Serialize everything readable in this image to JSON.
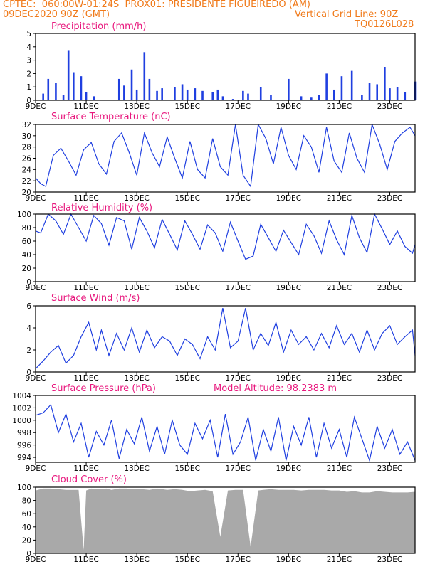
{
  "header": {
    "line1_left": "CPTEC:  060:00W-01:24S  PROX01: PRESIDENTE FIGUEIREDO (AM)",
    "line2_left": "09DEC2020 90Z (GMT)",
    "line2_right": "Vertical Grid Line: 90Z",
    "line3_right": "TQ0126L028"
  },
  "colors": {
    "header": "#f07a1a",
    "title": "#e8177d",
    "line": "#1f3fe0",
    "bar": "#1f3fe0",
    "cloud": "#a9a9a9"
  },
  "chart_data": [
    {
      "type": "bar",
      "title": "Precipitation (mm/h)",
      "x_tick_labels": [
        "9DEC",
        "11DEC",
        "13DEC",
        "15DEC",
        "17DEC",
        "19DEC",
        "21DEC",
        "23DEC"
      ],
      "yticks": [
        0,
        1,
        2,
        3,
        4,
        5
      ],
      "ylim": [
        0,
        5
      ],
      "x_days": [
        0,
        0.3,
        0.5,
        0.8,
        1.1,
        1.3,
        1.5,
        1.8,
        2.0,
        2.3,
        3.0,
        3.3,
        3.5,
        3.8,
        4.0,
        4.3,
        4.5,
        4.8,
        5.0,
        5.5,
        5.8,
        6.0,
        6.3,
        6.6,
        7.0,
        7.2,
        7.4,
        7.8,
        8.2,
        8.4,
        8.6,
        8.9,
        9.3,
        9.8,
        10.0,
        10.5,
        10.9,
        11.2,
        11.5,
        11.8,
        12.1,
        12.5,
        12.9,
        13.2,
        13.5,
        13.8,
        14.0,
        14.3,
        14.6,
        15.0
      ],
      "values": [
        0,
        0.5,
        1.6,
        1.3,
        0.4,
        3.7,
        2.1,
        1.8,
        0.6,
        0.3,
        0,
        1.6,
        1.1,
        2.3,
        0.8,
        3.6,
        1.6,
        0.7,
        0.9,
        1.0,
        1.2,
        0.8,
        0.9,
        0.7,
        0.6,
        0.8,
        0.3,
        0.1,
        0.7,
        0.5,
        0,
        1.0,
        0.4,
        0,
        1.6,
        0.3,
        0.2,
        0.4,
        2.0,
        0.8,
        1.8,
        2.2,
        0.4,
        1.3,
        1.2,
        2.5,
        0.9,
        1.0,
        0.6,
        1.4
      ]
    },
    {
      "type": "line",
      "title": "Surface Temperature (nC)",
      "x_tick_labels": [
        "9DEC",
        "11DEC",
        "13DEC",
        "15DEC",
        "17DEC",
        "19DEC",
        "21DEC",
        "23DEC"
      ],
      "yticks": [
        20,
        22,
        24,
        26,
        28,
        30,
        32
      ],
      "ylim": [
        20,
        32
      ],
      "x_days": [
        0,
        0.2,
        0.4,
        0.7,
        1.0,
        1.3,
        1.6,
        1.9,
        2.2,
        2.5,
        2.8,
        3.1,
        3.4,
        3.7,
        4.0,
        4.3,
        4.6,
        4.9,
        5.2,
        5.5,
        5.8,
        6.1,
        6.4,
        6.7,
        7.0,
        7.3,
        7.6,
        7.9,
        8.2,
        8.5,
        8.8,
        9.1,
        9.4,
        9.7,
        10.0,
        10.3,
        10.6,
        10.9,
        11.2,
        11.5,
        11.8,
        12.1,
        12.4,
        12.7,
        13.0,
        13.3,
        13.6,
        13.9,
        14.2,
        14.5,
        14.8,
        15.0
      ],
      "values": [
        22.5,
        21.5,
        21.0,
        26.5,
        27.8,
        25.5,
        23.0,
        27.5,
        28.8,
        25.0,
        23.2,
        29.0,
        30.5,
        27.0,
        23.0,
        30.5,
        27.0,
        24.5,
        29.8,
        26.0,
        22.5,
        29.0,
        24.0,
        22.5,
        29.5,
        24.5,
        23.0,
        32.5,
        23.0,
        21.0,
        32.0,
        29.5,
        25.0,
        31.5,
        26.5,
        24.0,
        30.0,
        28.0,
        23.5,
        31.5,
        25.5,
        23.5,
        30.5,
        26.0,
        23.5,
        32.0,
        28.5,
        24.0,
        29.0,
        30.5,
        31.5,
        30.0
      ]
    },
    {
      "type": "line",
      "title": "Relative Humidity (%)",
      "x_tick_labels": [
        "9DEC",
        "11DEC",
        "13DEC",
        "15DEC",
        "17DEC",
        "19DEC",
        "21DEC",
        "23DEC"
      ],
      "yticks": [
        0,
        20,
        40,
        60,
        80,
        100
      ],
      "ylim": [
        0,
        100
      ],
      "x_days": [
        0,
        0.2,
        0.5,
        0.8,
        1.1,
        1.4,
        1.7,
        2.0,
        2.3,
        2.6,
        2.9,
        3.2,
        3.5,
        3.8,
        4.1,
        4.4,
        4.7,
        5.0,
        5.3,
        5.6,
        5.9,
        6.2,
        6.5,
        6.8,
        7.1,
        7.4,
        7.7,
        8.0,
        8.3,
        8.6,
        8.9,
        9.2,
        9.5,
        9.8,
        10.1,
        10.4,
        10.7,
        11.0,
        11.3,
        11.6,
        11.9,
        12.2,
        12.5,
        12.8,
        13.1,
        13.4,
        13.7,
        14.0,
        14.3,
        14.6,
        14.9,
        15.0
      ],
      "values": [
        75,
        72,
        100,
        90,
        70,
        100,
        80,
        60,
        98,
        86,
        54,
        95,
        90,
        48,
        95,
        75,
        50,
        92,
        70,
        47,
        90,
        70,
        48,
        84,
        72,
        45,
        88,
        60,
        33,
        38,
        85,
        65,
        45,
        76,
        58,
        40,
        85,
        68,
        42,
        90,
        62,
        40,
        98,
        65,
        43,
        100,
        78,
        55,
        75,
        52,
        42,
        55
      ]
    },
    {
      "type": "line",
      "title": "Surface Wind (m/s)",
      "x_tick_labels": [
        "9DEC",
        "11DEC",
        "13DEC",
        "15DEC",
        "17DEC",
        "19DEC",
        "21DEC",
        "23DEC"
      ],
      "yticks": [
        0,
        2,
        4,
        6
      ],
      "ylim": [
        0,
        6
      ],
      "x_days": [
        0,
        0.3,
        0.6,
        0.9,
        1.2,
        1.5,
        1.8,
        2.1,
        2.4,
        2.6,
        2.9,
        3.2,
        3.5,
        3.8,
        4.1,
        4.4,
        4.7,
        5.0,
        5.3,
        5.6,
        5.9,
        6.2,
        6.5,
        6.8,
        7.1,
        7.4,
        7.7,
        8.0,
        8.3,
        8.6,
        8.9,
        9.2,
        9.5,
        9.8,
        10.1,
        10.4,
        10.7,
        11.0,
        11.3,
        11.6,
        11.9,
        12.2,
        12.5,
        12.8,
        13.1,
        13.4,
        13.7,
        14.0,
        14.3,
        14.6,
        14.9,
        15.0
      ],
      "values": [
        0.3,
        1.0,
        1.8,
        2.4,
        0.8,
        1.5,
        3.2,
        4.5,
        2.0,
        3.8,
        1.5,
        3.5,
        2.0,
        4.0,
        1.8,
        3.8,
        2.2,
        3.2,
        2.8,
        1.5,
        3.0,
        2.5,
        1.2,
        3.2,
        2.0,
        5.8,
        2.2,
        2.8,
        5.8,
        2.0,
        3.5,
        2.4,
        4.5,
        1.8,
        3.8,
        2.5,
        3.2,
        2.0,
        3.5,
        2.2,
        4.2,
        2.5,
        3.5,
        1.8,
        3.8,
        2.0,
        3.5,
        4.2,
        2.5,
        3.2,
        3.8,
        1.5
      ]
    },
    {
      "type": "line",
      "title": "Surface Pressure (hPa)",
      "annotation": "Model Altitude: 98.2383 m",
      "x_tick_labels": [
        "9DEC",
        "11DEC",
        "13DEC",
        "15DEC",
        "17DEC",
        "19DEC",
        "21DEC",
        "23DEC"
      ],
      "yticks": [
        994,
        996,
        998,
        1000,
        1002,
        1004
      ],
      "ylim": [
        993.2,
        1004
      ],
      "x_days": [
        0,
        0.3,
        0.6,
        0.9,
        1.2,
        1.5,
        1.8,
        2.1,
        2.4,
        2.7,
        3.0,
        3.3,
        3.6,
        3.9,
        4.2,
        4.5,
        4.8,
        5.1,
        5.4,
        5.7,
        6.0,
        6.3,
        6.6,
        6.9,
        7.2,
        7.5,
        7.8,
        8.1,
        8.4,
        8.7,
        9.0,
        9.3,
        9.6,
        9.9,
        10.2,
        10.5,
        10.8,
        11.1,
        11.4,
        11.7,
        12.0,
        12.3,
        12.6,
        12.9,
        13.2,
        13.5,
        13.8,
        14.1,
        14.4,
        14.7,
        15.0
      ],
      "values": [
        1000.8,
        1001.2,
        1002.5,
        998.0,
        1001.0,
        996.5,
        999.5,
        994.0,
        998.2,
        996.0,
        1000.0,
        993.8,
        998.5,
        996.2,
        1000.5,
        995.0,
        999.0,
        994.5,
        1000.0,
        996.0,
        994.5,
        999.5,
        997.0,
        1000.0,
        994.0,
        1001.0,
        994.5,
        996.5,
        1000.5,
        993.5,
        998.5,
        995.0,
        1000.5,
        993.5,
        999.0,
        996.0,
        1000.5,
        994.0,
        999.5,
        995.5,
        998.5,
        994.0,
        1000.5,
        997.0,
        993.5,
        999.0,
        995.5,
        998.5,
        994.5,
        996.5,
        993.5
      ]
    },
    {
      "type": "area",
      "title": "Cloud Cover (%)",
      "x_tick_labels": [
        "9DEC",
        "11DEC",
        "13DEC",
        "15DEC",
        "17DEC",
        "19DEC",
        "21DEC",
        "23DEC"
      ],
      "yticks": [
        0,
        20,
        40,
        60,
        80,
        100
      ],
      "ylim": [
        0,
        100
      ],
      "x_days": [
        0,
        0.3,
        0.6,
        0.9,
        1.2,
        1.5,
        1.7,
        1.9,
        2.0,
        2.2,
        2.5,
        2.8,
        3.0,
        3.3,
        3.6,
        3.9,
        4.2,
        4.5,
        4.8,
        5.0,
        5.2,
        5.5,
        5.8,
        6.1,
        6.4,
        6.7,
        7.0,
        7.3,
        7.6,
        7.9,
        8.2,
        8.5,
        8.8,
        9.0,
        9.3,
        9.6,
        9.9,
        10.2,
        10.5,
        10.8,
        11.1,
        11.4,
        11.7,
        12.0,
        12.3,
        12.6,
        12.9,
        13.2,
        13.5,
        13.8,
        14.1,
        14.4,
        14.7,
        15.0
      ],
      "values": [
        95,
        98,
        98,
        97,
        96,
        96,
        96,
        5,
        95,
        98,
        97,
        98,
        96,
        98,
        98,
        97,
        97,
        96,
        98,
        97,
        96,
        97,
        96,
        94,
        95,
        96,
        94,
        25,
        95,
        96,
        96,
        10,
        95,
        96,
        97,
        96,
        96,
        96,
        95,
        96,
        96,
        96,
        95,
        95,
        93,
        94,
        92,
        92,
        94,
        93,
        92,
        92,
        92,
        93
      ]
    }
  ]
}
